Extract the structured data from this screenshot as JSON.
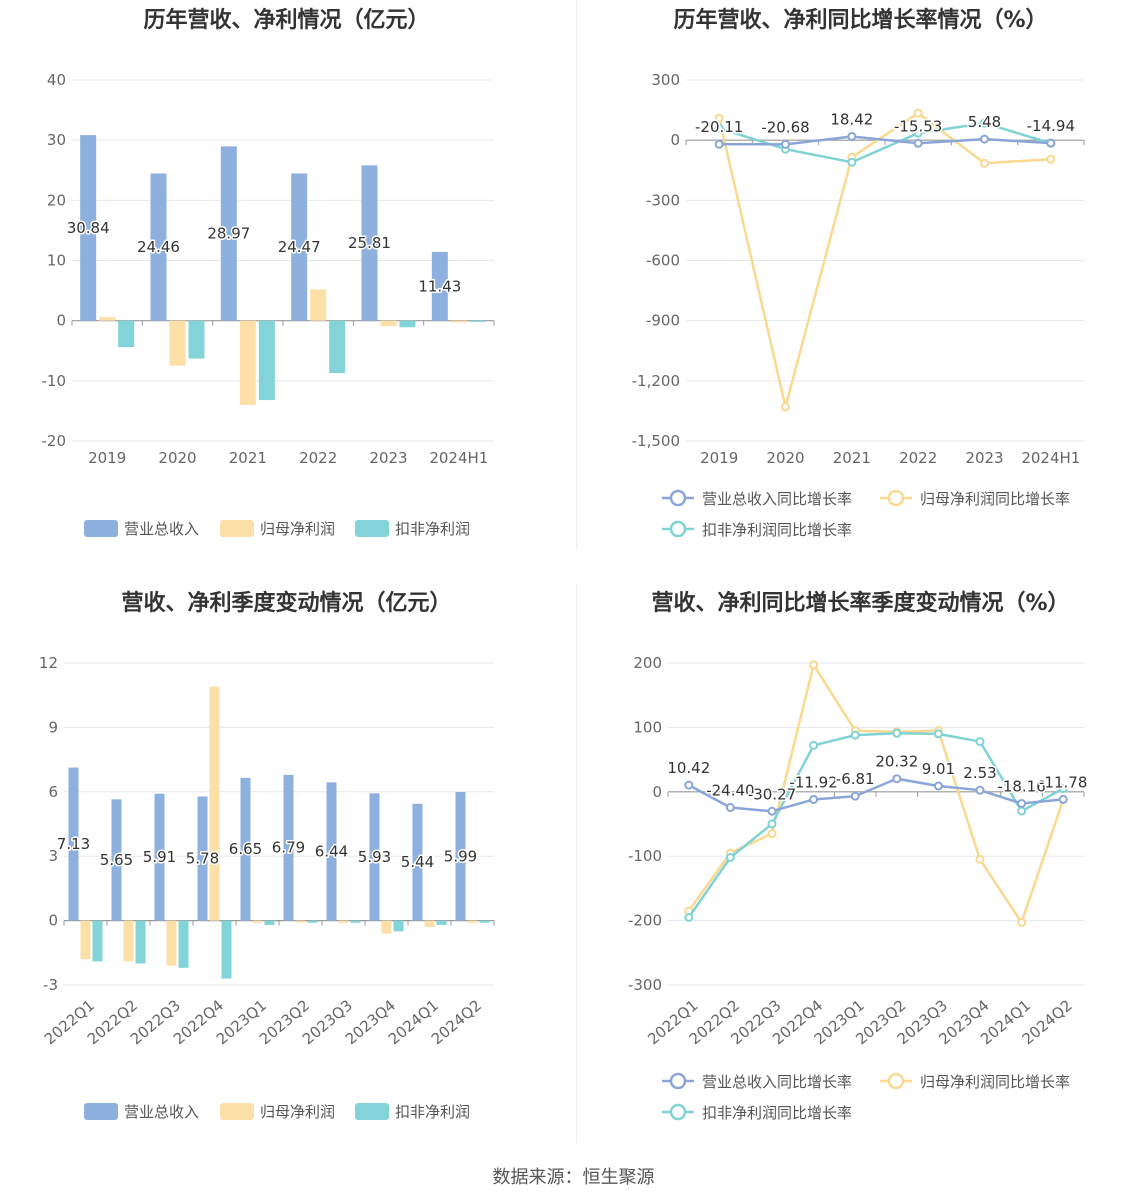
{
  "footer": {
    "source": "数据来源：恒生聚源"
  },
  "colors": {
    "revenue": "#8eb0de",
    "net_profit": "#fde0a8",
    "deducted_profit": "#82d4d8",
    "revenue_line": "#8aa6d8",
    "net_line": "#fbd88f",
    "deducted_line": "#7fd3d6",
    "grid": "#e6e8f0",
    "axis": "#999999"
  },
  "chart_data": [
    {
      "type": "bar",
      "title": "历年营收、净利情况（亿元）",
      "categories": [
        "2019",
        "2020",
        "2021",
        "2022",
        "2023",
        "2024H1"
      ],
      "ylim": [
        -20,
        40
      ],
      "yticks": [
        40,
        30,
        20,
        10,
        0,
        -10,
        -20
      ],
      "series": [
        {
          "name": "营业总收入",
          "values": [
            30.84,
            24.46,
            28.97,
            24.47,
            25.81,
            11.43
          ],
          "labels": [
            "30.84",
            "24.46",
            "28.97",
            "24.47",
            "25.81",
            "11.43"
          ]
        },
        {
          "name": "归母净利润",
          "values": [
            0.6,
            -7.5,
            -14.0,
            5.2,
            -0.9,
            -0.3
          ]
        },
        {
          "name": "扣非净利润",
          "values": [
            -4.4,
            -6.3,
            -13.2,
            -8.7,
            -1.1,
            -0.2
          ]
        }
      ],
      "legend_position": "bottom"
    },
    {
      "type": "line",
      "title": "历年营收、净利同比增长率情况（%）",
      "categories": [
        "2019",
        "2020",
        "2021",
        "2022",
        "2023",
        "2024H1"
      ],
      "ylim": [
        -1500,
        300
      ],
      "yticks": [
        "300",
        "0",
        "-300",
        "-600",
        "-900",
        "-1,200",
        "-1,500"
      ],
      "ytick_values": [
        300,
        0,
        -300,
        -600,
        -900,
        -1200,
        -1500
      ],
      "series": [
        {
          "name": "营业总收入同比增长率",
          "values": [
            -20.11,
            -20.68,
            18.42,
            -15.53,
            5.48,
            -14.94
          ],
          "labels": [
            "-20.11",
            "-20.68",
            "18.42",
            "-15.53",
            "5.48",
            "-14.94"
          ]
        },
        {
          "name": "归母净利润同比增长率",
          "values": [
            110,
            -1330,
            -85,
            135,
            -115,
            -95
          ]
        },
        {
          "name": "扣非净利润同比增长率",
          "values": [
            60,
            -45,
            -110,
            35,
            85,
            -15
          ]
        }
      ],
      "legend_position": "bottom"
    },
    {
      "type": "bar",
      "title": "营收、净利季度变动情况（亿元）",
      "categories": [
        "2022Q1",
        "2022Q2",
        "2022Q3",
        "2022Q4",
        "2023Q1",
        "2023Q2",
        "2023Q3",
        "2023Q4",
        "2024Q1",
        "2024Q2"
      ],
      "ylim": [
        -3,
        12
      ],
      "yticks": [
        12,
        9,
        6,
        3,
        0,
        -3
      ],
      "series": [
        {
          "name": "营业总收入",
          "values": [
            7.13,
            5.65,
            5.91,
            5.78,
            6.65,
            6.79,
            6.44,
            5.93,
            5.44,
            5.99
          ],
          "labels": [
            "7.13",
            "5.65",
            "5.91",
            "5.78",
            "6.65",
            "6.79",
            "6.44",
            "5.93",
            "5.44",
            "5.99"
          ]
        },
        {
          "name": "归母净利润",
          "values": [
            -1.8,
            -1.9,
            -2.1,
            10.9,
            -0.1,
            -0.1,
            -0.1,
            -0.6,
            -0.3,
            -0.1
          ]
        },
        {
          "name": "扣非净利润",
          "values": [
            -1.9,
            -2.0,
            -2.2,
            -2.7,
            -0.2,
            -0.1,
            -0.1,
            -0.5,
            -0.2,
            -0.1
          ]
        }
      ],
      "legend_position": "bottom"
    },
    {
      "type": "line",
      "title": "营收、净利同比增长率季度变动情况（%）",
      "categories": [
        "2022Q1",
        "2022Q2",
        "2022Q3",
        "2022Q4",
        "2023Q1",
        "2023Q2",
        "2023Q3",
        "2023Q4",
        "2024Q1",
        "2024Q2"
      ],
      "ylim": [
        -300,
        200
      ],
      "yticks": [
        "200",
        "100",
        "0",
        "-100",
        "-200",
        "-300"
      ],
      "ytick_values": [
        200,
        100,
        0,
        -100,
        -200,
        -300
      ],
      "series": [
        {
          "name": "营业总收入同比增长率",
          "values": [
            10.42,
            -24.4,
            -30.27,
            -11.92,
            -6.81,
            20.32,
            9.01,
            2.53,
            -18.16,
            -11.78
          ],
          "labels": [
            "10.42",
            "-24.40",
            "-30.27",
            "-11.92",
            "-6.81",
            "20.32",
            "9.01",
            "2.53",
            "-18.16",
            "-11.78"
          ]
        },
        {
          "name": "归母净利润同比增长率",
          "values": [
            -185,
            -95,
            -65,
            197,
            95,
            93,
            95,
            -105,
            -203,
            -12
          ]
        },
        {
          "name": "扣非净利润同比增长率",
          "values": [
            -195,
            -102,
            -50,
            72,
            88,
            91,
            90,
            78,
            -30,
            5
          ]
        }
      ],
      "legend_position": "bottom"
    }
  ]
}
